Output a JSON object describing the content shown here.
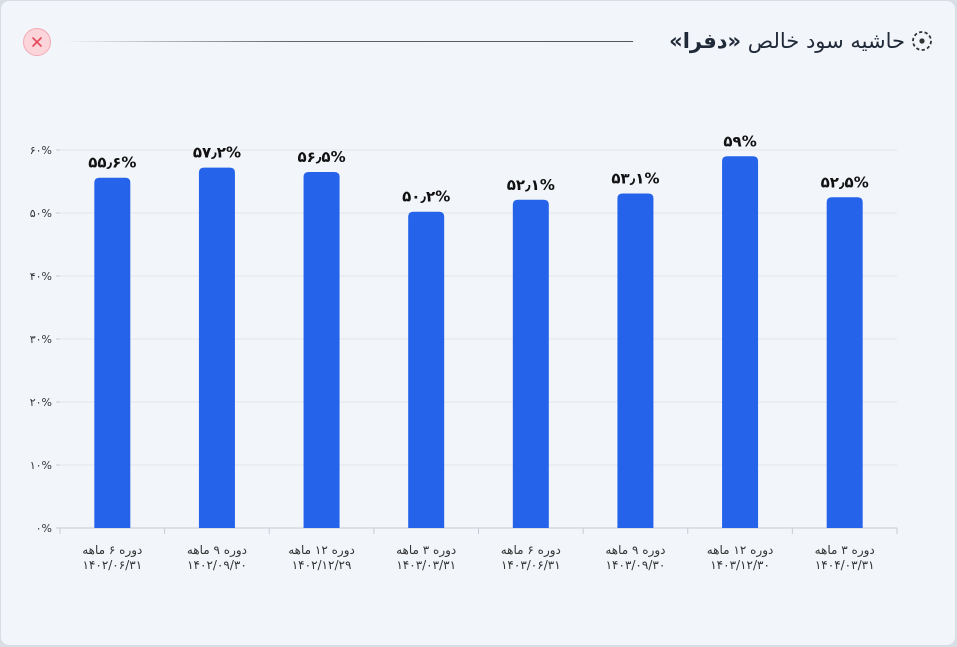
{
  "header": {
    "title_prefix": "حاشیه سود خالص",
    "title_symbol": "«دفرا»",
    "icon": "target-icon",
    "close_icon": "close-icon"
  },
  "colors": {
    "bar": "#2563eb",
    "close_bg": "#fbd5d9",
    "close_x": "#e5485d"
  },
  "chart_data": {
    "type": "bar",
    "ylim": [
      0,
      60
    ],
    "yticks": [
      0,
      10,
      20,
      30,
      40,
      50,
      60
    ],
    "ytick_labels": [
      "۰%",
      "۱۰%",
      "۲۰%",
      "۳۰%",
      "۴۰%",
      "۵۰%",
      "۶۰%"
    ],
    "grid": true,
    "categories": [
      [
        "دوره ۶ ماهه",
        "۱۴۰۲/۰۶/۳۱"
      ],
      [
        "دوره ۹ ماهه",
        "۱۴۰۲/۰۹/۳۰"
      ],
      [
        "دوره ۱۲ ماهه",
        "۱۴۰۲/۱۲/۲۹"
      ],
      [
        "دوره ۳ ماهه",
        "۱۴۰۳/۰۳/۳۱"
      ],
      [
        "دوره ۶ ماهه",
        "۱۴۰۳/۰۶/۳۱"
      ],
      [
        "دوره ۹ ماهه",
        "۱۴۰۳/۰۹/۳۰"
      ],
      [
        "دوره ۱۲ ماهه",
        "۱۴۰۳/۱۲/۳۰"
      ],
      [
        "دوره ۳ ماهه",
        "۱۴۰۴/۰۳/۳۱"
      ]
    ],
    "values": [
      55.6,
      57.2,
      56.5,
      50.2,
      52.1,
      53.1,
      59,
      52.5
    ],
    "value_labels": [
      "۵۵٫۶%",
      "۵۷٫۲%",
      "۵۶٫۵%",
      "۵۰٫۲%",
      "۵۲٫۱%",
      "۵۳٫۱%",
      "۵۹%",
      "۵۲٫۵%"
    ]
  }
}
